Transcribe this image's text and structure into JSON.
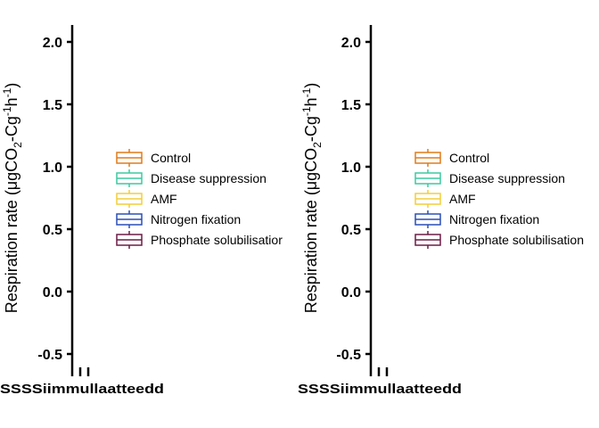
{
  "chart_data": [
    {
      "type": "box",
      "ylabel": {
        "prefix": "Respiration rate (",
        "mu": "μ",
        "gco": "gCO",
        "sub2": "2",
        "dash": "-Cg",
        "sup1": "-1",
        "h": "h",
        "sup2": "-1",
        "close": ")"
      },
      "ylim": [
        -0.6,
        2.15
      ],
      "yticks": [
        -0.5,
        0.0,
        0.5,
        1.0,
        1.5,
        2.0
      ],
      "ytick_labels": [
        "-0.5",
        "0.0",
        "0.5",
        "1.0",
        "1.5",
        "2.0"
      ],
      "xtick_count": 2,
      "x_label_overlap": "SSSSiimmullaatteedd",
      "legend": [
        {
          "name": "Control",
          "color": "#E07B1A"
        },
        {
          "name": "Disease suppression",
          "color": "#3EC9A0"
        },
        {
          "name": "AMF",
          "color": "#F2CE3B"
        },
        {
          "name": "Nitrogen fixation",
          "color": "#2A4FB5"
        },
        {
          "name": "Phosphate solubilisatior",
          "color": "#6B1D47"
        }
      ],
      "legend_position": "center",
      "grid": false
    },
    {
      "type": "box",
      "ylabel": {
        "prefix": "Respiration rate (",
        "mu": "μ",
        "gco": "gCO",
        "sub2": "2",
        "dash": "-Cg",
        "sup1": "-1",
        "h": "h",
        "sup2": "-1",
        "close": ")"
      },
      "ylim": [
        -0.6,
        2.15
      ],
      "yticks": [
        -0.5,
        0.0,
        0.5,
        1.0,
        1.5,
        2.0
      ],
      "ytick_labels": [
        "-0.5",
        "0.0",
        "0.5",
        "1.0",
        "1.5",
        "2.0"
      ],
      "xtick_count": 2,
      "x_label_overlap": "SSSSiimmullaatteedd",
      "legend": [
        {
          "name": "Control",
          "color": "#E07B1A"
        },
        {
          "name": "Disease suppression",
          "color": "#3EC9A0"
        },
        {
          "name": "AMF",
          "color": "#F2CE3B"
        },
        {
          "name": "Nitrogen fixation",
          "color": "#2A4FB5"
        },
        {
          "name": "Phosphate solubilisation",
          "color": "#6B1D47"
        }
      ],
      "legend_position": "center",
      "grid": false
    }
  ]
}
